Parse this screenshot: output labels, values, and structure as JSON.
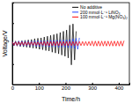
{
  "chart_data": {
    "type": "line",
    "x_label": "Time/h",
    "y_label": "Voltage/V",
    "x": [
      0,
      6,
      12,
      18,
      24,
      30,
      36,
      42,
      48,
      54,
      60,
      66,
      72,
      78,
      84,
      90,
      96,
      102,
      108,
      114,
      120,
      126,
      132,
      138,
      144,
      150,
      156,
      162,
      168,
      174,
      180,
      186,
      192,
      198,
      204,
      210,
      216,
      222,
      228,
      234,
      240,
      246,
      252,
      258,
      264,
      270,
      276,
      282,
      288,
      294,
      300,
      306,
      312,
      318,
      324,
      330,
      336,
      342,
      348,
      354,
      360,
      366,
      372,
      378,
      384,
      390,
      396,
      402,
      408,
      414,
      420
    ],
    "series": [
      {
        "name": "No additive",
        "color": "#000000",
        "values": [
          0.05,
          -0.05,
          0.06,
          -0.06,
          0.06,
          -0.07,
          0.07,
          -0.08,
          0.08,
          -0.09,
          0.09,
          -0.1,
          0.1,
          -0.11,
          0.12,
          -0.12,
          0.13,
          -0.14,
          0.14,
          -0.15,
          0.16,
          -0.17,
          0.18,
          -0.18,
          0.2,
          -0.21,
          0.22,
          -0.23,
          0.24,
          -0.25,
          0.27,
          -0.28,
          0.3,
          -0.31,
          0.33,
          -0.35,
          0.45,
          -0.52,
          0.48,
          -0.4,
          0.3,
          null,
          null,
          null,
          null,
          null,
          null,
          null,
          null,
          null,
          null,
          null,
          null,
          null,
          null,
          null,
          null,
          null,
          null,
          null,
          null,
          null,
          null,
          null,
          null,
          null,
          null,
          null,
          null,
          null,
          null
        ]
      },
      {
        "name": "200 mmol·L⁻¹ LiNO₃",
        "color": "#2040ff",
        "values": [
          0.05,
          -0.05,
          0.05,
          -0.05,
          0.06,
          -0.06,
          0.06,
          -0.06,
          0.06,
          -0.06,
          0.06,
          -0.06,
          0.06,
          -0.06,
          0.07,
          -0.07,
          0.07,
          -0.07,
          0.07,
          -0.07,
          0.07,
          -0.07,
          0.07,
          -0.08,
          0.08,
          -0.08,
          0.08,
          -0.08,
          0.08,
          -0.09,
          0.09,
          -0.09,
          0.09,
          -0.09,
          0.09,
          -0.1,
          0.1,
          -0.11,
          0.12,
          -0.12,
          0.13,
          -0.14,
          0.14,
          null,
          null,
          null,
          null,
          null,
          null,
          null,
          null,
          null,
          null,
          null,
          null,
          null,
          null,
          null,
          null,
          null,
          null,
          null,
          null,
          null,
          null,
          null,
          null,
          null,
          null,
          null,
          null
        ]
      },
      {
        "name": "100 mmol·L⁻¹ Mg(NO₃)₂",
        "color": "#ff0000",
        "values": [
          0.04,
          -0.04,
          0.04,
          -0.04,
          0.04,
          -0.04,
          0.04,
          -0.04,
          0.04,
          -0.04,
          0.04,
          -0.04,
          0.04,
          -0.04,
          0.04,
          -0.04,
          0.04,
          -0.04,
          0.04,
          -0.04,
          0.05,
          -0.05,
          0.05,
          -0.05,
          0.05,
          -0.05,
          0.05,
          -0.05,
          0.05,
          -0.05,
          0.05,
          -0.05,
          0.05,
          -0.05,
          0.05,
          -0.05,
          0.05,
          -0.05,
          0.05,
          -0.05,
          0.05,
          -0.05,
          0.05,
          -0.05,
          0.05,
          -0.05,
          0.05,
          -0.05,
          0.05,
          -0.05,
          0.06,
          -0.06,
          0.06,
          -0.06,
          0.06,
          -0.06,
          0.06,
          -0.06,
          0.06,
          -0.06,
          0.06,
          -0.06,
          0.06,
          -0.06,
          0.06,
          -0.06,
          0.06,
          -0.06,
          0.06,
          -0.06,
          0.07
        ]
      }
    ],
    "xlim": [
      0,
      440
    ],
    "xticks": [
      0,
      100,
      200,
      300,
      400
    ],
    "ylim": [
      -1,
      1
    ],
    "yticks": [
      -0.5,
      0,
      0.5
    ],
    "tick_labels": "x",
    "legend": "upper right"
  }
}
